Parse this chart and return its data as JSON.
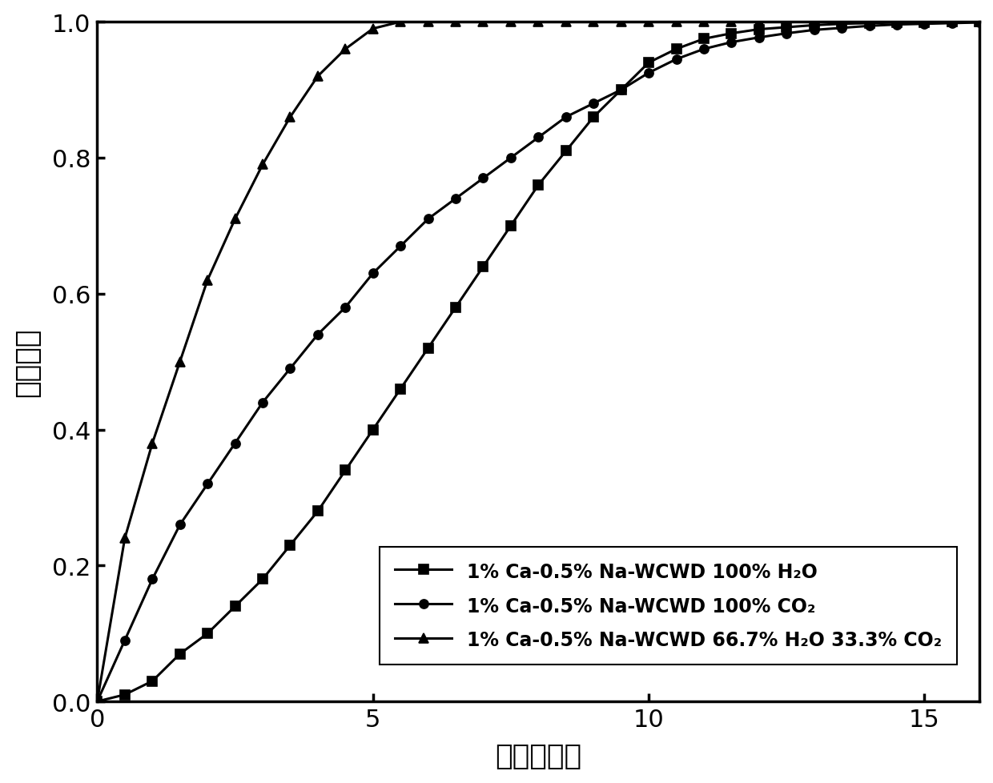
{
  "title": "",
  "xlabel": "时间（分）",
  "ylabel": "碳转化率",
  "xlim": [
    0,
    16
  ],
  "ylim": [
    0.0,
    1.0
  ],
  "xticks": [
    0,
    5,
    10,
    15
  ],
  "yticks": [
    0.0,
    0.2,
    0.4,
    0.6,
    0.8,
    1.0
  ],
  "background_color": "#ffffff",
  "series": [
    {
      "label": "1% Ca-0.5% Na-WCWD 100% H₂O",
      "marker": "s",
      "x": [
        0,
        0.5,
        1.0,
        1.5,
        2.0,
        2.5,
        3.0,
        3.5,
        4.0,
        4.5,
        5.0,
        5.5,
        6.0,
        6.5,
        7.0,
        7.5,
        8.0,
        8.5,
        9.0,
        9.5,
        10.0,
        10.5,
        11.0,
        11.5,
        12.0,
        12.5,
        13.0,
        13.5,
        14.0,
        14.5,
        15.0,
        15.5,
        16.0
      ],
      "y": [
        0.0,
        0.01,
        0.03,
        0.07,
        0.1,
        0.14,
        0.18,
        0.23,
        0.28,
        0.34,
        0.4,
        0.46,
        0.52,
        0.58,
        0.64,
        0.7,
        0.76,
        0.81,
        0.86,
        0.9,
        0.94,
        0.96,
        0.975,
        0.983,
        0.989,
        0.992,
        0.995,
        0.997,
        0.998,
        0.999,
        0.999,
        1.0,
        1.0
      ]
    },
    {
      "label": "1% Ca-0.5% Na-WCWD 100% CO₂",
      "marker": "o",
      "x": [
        0,
        0.5,
        1.0,
        1.5,
        2.0,
        2.5,
        3.0,
        3.5,
        4.0,
        4.5,
        5.0,
        5.5,
        6.0,
        6.5,
        7.0,
        7.5,
        8.0,
        8.5,
        9.0,
        9.5,
        10.0,
        10.5,
        11.0,
        11.5,
        12.0,
        12.5,
        13.0,
        13.5,
        14.0,
        14.5,
        15.0,
        15.5,
        16.0
      ],
      "y": [
        0.0,
        0.09,
        0.18,
        0.26,
        0.32,
        0.38,
        0.44,
        0.49,
        0.54,
        0.58,
        0.63,
        0.67,
        0.71,
        0.74,
        0.77,
        0.8,
        0.83,
        0.86,
        0.88,
        0.9,
        0.925,
        0.945,
        0.96,
        0.97,
        0.977,
        0.983,
        0.988,
        0.991,
        0.994,
        0.996,
        0.997,
        0.998,
        0.999
      ]
    },
    {
      "label": "1% Ca-0.5% Na-WCWD 66.7% H₂O 33.3% CO₂",
      "marker": "^",
      "x": [
        0,
        0.5,
        1.0,
        1.5,
        2.0,
        2.5,
        3.0,
        3.5,
        4.0,
        4.5,
        5.0,
        5.5,
        6.0,
        6.5,
        7.0,
        7.5,
        8.0,
        8.5,
        9.0,
        9.5,
        10.0,
        10.5,
        11.0,
        11.5,
        12.0,
        12.5,
        13.0,
        13.5,
        14.0,
        14.5,
        15.0,
        15.5,
        16.0
      ],
      "y": [
        0.0,
        0.24,
        0.38,
        0.5,
        0.62,
        0.71,
        0.79,
        0.86,
        0.92,
        0.96,
        0.99,
        1.0,
        1.0,
        1.0,
        1.0,
        1.0,
        1.0,
        1.0,
        1.0,
        1.0,
        1.0,
        1.0,
        1.0,
        1.0,
        1.0,
        1.0,
        1.0,
        1.0,
        1.0,
        1.0,
        1.0,
        1.0,
        1.0
      ]
    }
  ],
  "marker_every": 1,
  "linewidth": 2.2,
  "markersize": 8,
  "tick_fontsize": 22,
  "label_fontsize": 26,
  "legend_fontsize": 17,
  "spine_linewidth": 2.5
}
